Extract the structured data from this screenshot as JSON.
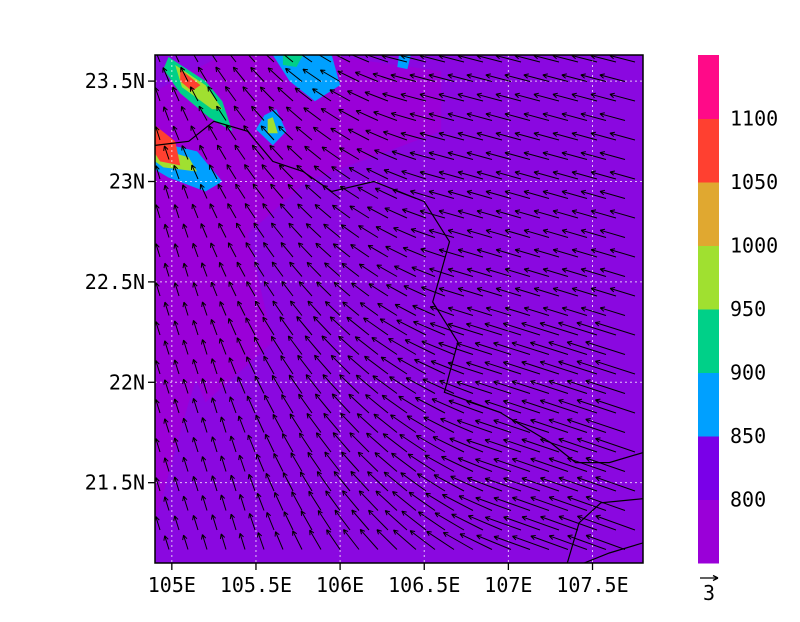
{
  "map": {
    "lat_labels": [
      "23.5N",
      "23N",
      "22.5N",
      "22N",
      "21.5N"
    ],
    "lon_labels": [
      "105E",
      "105.5E",
      "106E",
      "106.5E",
      "107E",
      "107.5E"
    ],
    "lat_range": [
      21.1,
      23.63
    ],
    "lon_range": [
      104.9,
      107.8
    ],
    "gridlines": true,
    "base_color": "#8a08e0"
  },
  "colorbar": {
    "colors": [
      "#9a00d8",
      "#7a00e8",
      "#00a0ff",
      "#00d088",
      "#a0e030",
      "#e0a830",
      "#ff4030",
      "#ff0a88"
    ],
    "labels": [
      "800",
      "850",
      "900",
      "950",
      "1000",
      "1050",
      "1100"
    ]
  },
  "vector_legend": {
    "value": "3"
  }
}
